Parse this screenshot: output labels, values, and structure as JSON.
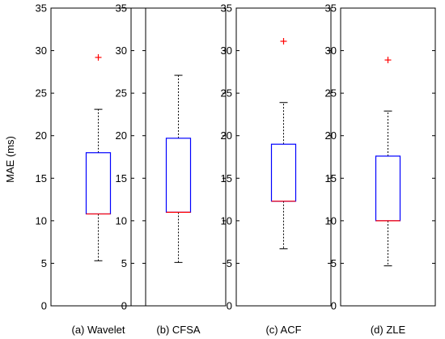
{
  "chart_data": {
    "type": "box",
    "ylabel": "MAE (ms)",
    "ylim": [
      0,
      35
    ],
    "yticks": [
      0,
      5,
      10,
      15,
      20,
      25,
      30,
      35
    ],
    "grid": false,
    "colors": {
      "box": "#0000ff",
      "median": "#ff0000",
      "whisker": "#000000",
      "outlier": "#ff0000"
    },
    "panels": [
      {
        "label": "(a) Wavelet",
        "whisker_low": 5.3,
        "q1": 10.8,
        "median": 10.8,
        "q3": 18.0,
        "whisker_high": 23.1,
        "outliers": [
          29.2
        ]
      },
      {
        "label": "(b) CFSA",
        "whisker_low": 5.1,
        "q1": 11.0,
        "median": 11.0,
        "q3": 19.7,
        "whisker_high": 27.1,
        "outliers": []
      },
      {
        "label": "(c) ACF",
        "whisker_low": 6.7,
        "q1": 12.3,
        "median": 12.3,
        "q3": 19.0,
        "whisker_high": 23.9,
        "outliers": [
          31.1
        ]
      },
      {
        "label": "(d) ZLE",
        "whisker_low": 4.7,
        "q1": 10.0,
        "median": 10.0,
        "q3": 17.6,
        "whisker_high": 22.9,
        "outliers": [
          28.9
        ]
      }
    ]
  }
}
